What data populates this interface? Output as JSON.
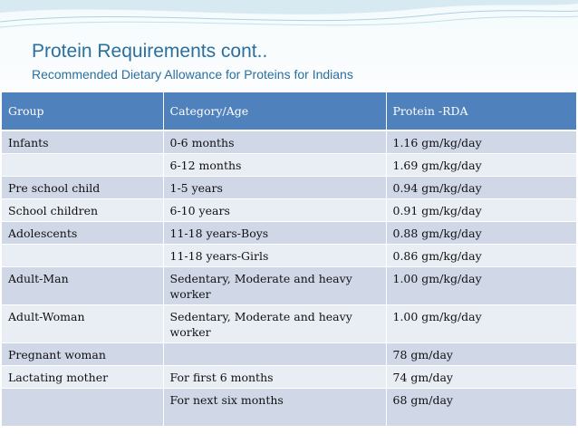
{
  "slide": {
    "title": "Protein Requirements cont..",
    "subtitle": "Recommended Dietary Allowance for Proteins for Indians"
  },
  "table": {
    "headers": [
      "Group",
      "Category/Age",
      "Protein -RDA"
    ],
    "rows": [
      {
        "group": "Infants",
        "category": "0-6 months",
        "rda": "1.16 gm/kg/day"
      },
      {
        "group": "",
        "category": "6-12 months",
        "rda": "1.69 gm/kg/day"
      },
      {
        "group": "Pre school child",
        "category": "1-5 years",
        "rda": "0.94 gm/kg/day"
      },
      {
        "group": "School children",
        "category": "6-10 years",
        "rda": "0.91 gm/kg/day"
      },
      {
        "group": "Adolescents",
        "category": "11-18 years-Boys",
        "rda": "0.88 gm/kg/day"
      },
      {
        "group": "",
        "category": "11-18 years-Girls",
        "rda": "0.86 gm/kg/day"
      },
      {
        "group": "Adult-Man",
        "category": "Sedentary, Moderate and heavy worker",
        "rda": "1.00 gm/kg/day"
      },
      {
        "group": "Adult-Woman",
        "category": "Sedentary, Moderate and heavy worker",
        "rda": "1.00 gm/kg/day"
      },
      {
        "group": "Pregnant woman",
        "category": "",
        "rda": "78 gm/day"
      },
      {
        "group": "Lactating mother",
        "category": "For first 6 months",
        "rda": "74 gm/day"
      },
      {
        "group": "",
        "category": "For next six months",
        "rda": "68 gm/day"
      }
    ]
  },
  "colors": {
    "title": "#2b6f9e",
    "header_bg": "#4f81bd",
    "row_odd": "#d0d8e8",
    "row_even": "#e9edf4"
  }
}
